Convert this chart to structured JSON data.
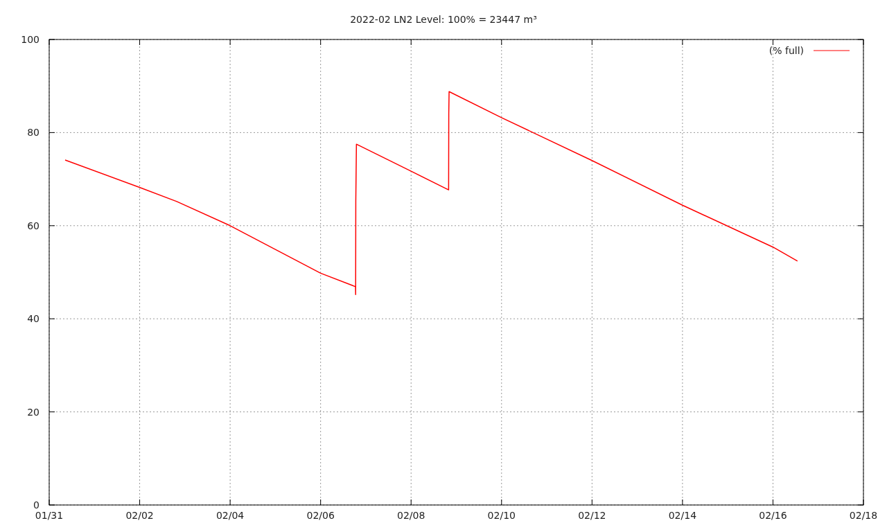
{
  "chart_data": {
    "type": "line",
    "title": "2022-02 LN2 Level: 100% = 23447 m³",
    "x": [
      "2022-01-31T08:27",
      "2022-02-02T00:10",
      "2022-02-02T19:40",
      "2022-02-04T00:00",
      "2022-02-06T00:00",
      "2022-02-06T18:30",
      "2022-02-06T18:35",
      "2022-02-06T18:40",
      "2022-02-06T19:00",
      "2022-02-08T00:00",
      "2022-02-08T19:55",
      "2022-02-08T20:00",
      "2022-02-08T20:10",
      "2022-02-10T00:00",
      "2022-02-12T00:00",
      "2022-02-14T00:00",
      "2022-02-16T00:00",
      "2022-02-16T13:00"
    ],
    "series": [
      {
        "name": "(% full)",
        "color": "#ff0000",
        "values": [
          74.1,
          68.2,
          65.2,
          60.0,
          49.8,
          46.9,
          45.2,
          65.2,
          77.5,
          71.7,
          67.7,
          84.2,
          88.8,
          83.2,
          74.0,
          64.4,
          55.4,
          52.4
        ]
      }
    ],
    "xlim": [
      "2022-01-31",
      "2022-02-18"
    ],
    "xticks": [
      {
        "value": "2022-01-31",
        "label": "01/31"
      },
      {
        "value": "2022-02-02",
        "label": "02/02"
      },
      {
        "value": "2022-02-04",
        "label": "02/04"
      },
      {
        "value": "2022-02-06",
        "label": "02/06"
      },
      {
        "value": "2022-02-08",
        "label": "02/08"
      },
      {
        "value": "2022-02-10",
        "label": "02/10"
      },
      {
        "value": "2022-02-12",
        "label": "02/12"
      },
      {
        "value": "2022-02-14",
        "label": "02/14"
      },
      {
        "value": "2022-02-16",
        "label": "02/16"
      },
      {
        "value": "2022-02-18",
        "label": "02/18"
      }
    ],
    "ylim": [
      0,
      100
    ],
    "yticks": [
      0,
      20,
      40,
      60,
      80,
      100
    ],
    "grid": true,
    "legend": "top right",
    "marker": "none",
    "line_style": "solid"
  }
}
